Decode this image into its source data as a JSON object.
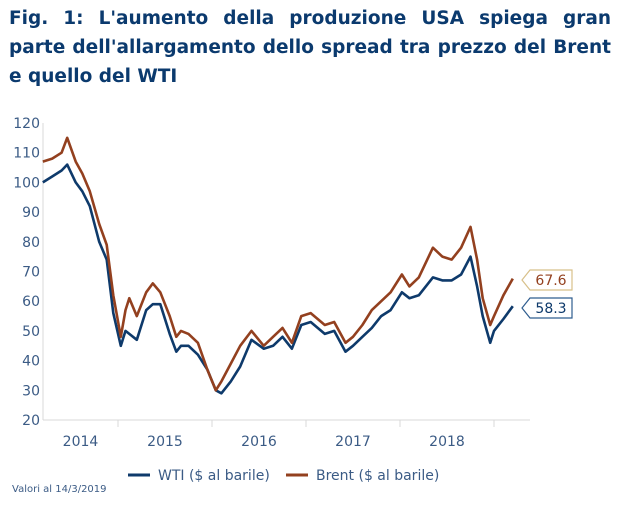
{
  "title": "Fig. 1: L'aumento della produzione USA spiega gran parte dell'allargamento dello spread tra prezzo del Brent e quello del WTI",
  "note": "Valori al 14/3/2019",
  "chart_data": {
    "type": "line",
    "title": "Fig. 1: L'aumento della produzione USA spiega gran parte dell'allargamento dello spread tra prezzo del Brent e quello del WTI",
    "xlabel": "",
    "ylabel": "",
    "ylim": [
      20,
      120
    ],
    "yticks": [
      "20",
      "30",
      "40",
      "50",
      "60",
      "70",
      "80",
      "90",
      "100",
      "110",
      "120"
    ],
    "xlim": [
      2014.2,
      2019.25
    ],
    "xticks": [
      "2014",
      "2015",
      "2016",
      "2017",
      "2018"
    ],
    "x": [
      2014.2,
      2014.3,
      2014.4,
      2014.46,
      2014.55,
      2014.62,
      2014.7,
      2014.8,
      2014.88,
      2014.95,
      2015.03,
      2015.08,
      2015.12,
      2015.2,
      2015.3,
      2015.37,
      2015.45,
      2015.55,
      2015.62,
      2015.67,
      2015.75,
      2015.85,
      2015.95,
      2016.04,
      2016.1,
      2016.2,
      2016.3,
      2016.42,
      2016.55,
      2016.65,
      2016.75,
      2016.85,
      2016.95,
      2017.05,
      2017.2,
      2017.3,
      2017.42,
      2017.5,
      2017.6,
      2017.7,
      2017.8,
      2017.9,
      2018.02,
      2018.1,
      2018.2,
      2018.35,
      2018.45,
      2018.55,
      2018.65,
      2018.75,
      2018.82,
      2018.88,
      2018.96,
      2019.0,
      2019.1,
      2019.2
    ],
    "series": [
      {
        "name": "WTI ($ al barile)",
        "color": "#0e3a6b",
        "last_label": "58.3",
        "values": [
          100,
          102,
          104,
          106,
          100,
          97,
          92,
          80,
          74,
          56,
          45,
          50,
          49,
          47,
          57,
          59,
          59,
          49,
          43,
          45,
          45,
          42,
          37,
          30,
          29,
          33,
          38,
          47,
          44,
          45,
          48,
          44,
          52,
          53,
          49,
          50,
          43,
          45,
          48,
          51,
          55,
          57,
          63,
          61,
          62,
          68,
          67,
          67,
          69,
          75,
          65,
          55,
          46,
          50,
          54,
          58.3
        ]
      },
      {
        "name": "Brent ($ al barile)",
        "color": "#93401f",
        "last_label": "67.6",
        "values": [
          107,
          108,
          110,
          115,
          107,
          103,
          97,
          86,
          79,
          62,
          48,
          57,
          61,
          55,
          63,
          66,
          63,
          55,
          48,
          50,
          49,
          46,
          37,
          30,
          33,
          39,
          45,
          50,
          45,
          48,
          51,
          46,
          55,
          56,
          52,
          53,
          46,
          48,
          52,
          57,
          60,
          63,
          69,
          65,
          68,
          78,
          75,
          74,
          78,
          85,
          74,
          61,
          52,
          55,
          62,
          67.6
        ]
      }
    ],
    "legend": "bottom",
    "grid": false
  }
}
